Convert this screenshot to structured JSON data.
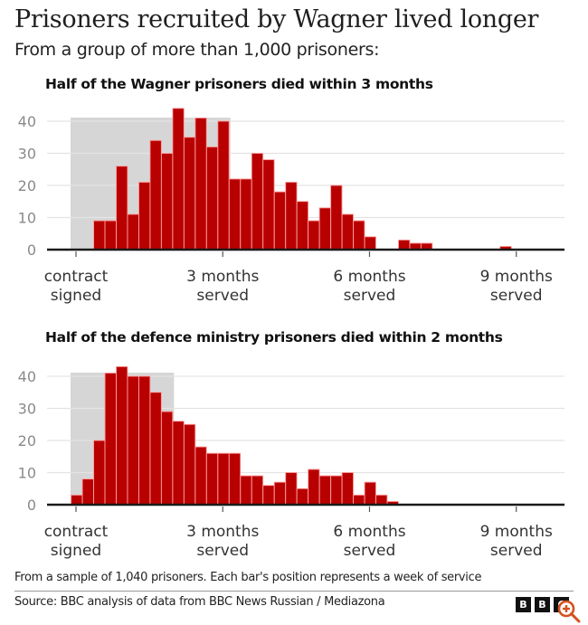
{
  "header": {
    "title": "Prisoners recruited by Wagner lived longer",
    "subtitle": "From a group of more than 1,000 prisoners:"
  },
  "footer": {
    "note": "From a sample of 1,040 prisoners. Each bar's position represents a week of service",
    "source": "Source: BBC analysis of data from BBC News Russian / Mediazona",
    "logo_letters": [
      "B",
      "B",
      "C"
    ],
    "zoom_icon": "zoom-in-icon"
  },
  "colors": {
    "bar": "#b80000",
    "bar_outline": "#ff9a9a",
    "highlight_band": "#d6d6d6",
    "grid": "#e3e3e3",
    "axis": "#1a1a1a",
    "zoom_icon": "#d4511e"
  },
  "chart_data": [
    {
      "type": "bar",
      "title": "Half of the Wagner prisoners died within 3 months",
      "xlabel": "",
      "ylabel": "",
      "ylim": [
        0,
        45
      ],
      "yticks": [
        0,
        10,
        20,
        30,
        40
      ],
      "grid": true,
      "x_unit": "week of service",
      "xticks": [
        {
          "week": 0,
          "label": [
            "contract",
            "signed"
          ]
        },
        {
          "week": 13,
          "label": [
            "3 months",
            "served"
          ]
        },
        {
          "week": 26,
          "label": [
            "6 months",
            "served"
          ]
        },
        {
          "week": 39,
          "label": [
            "9 months",
            "served"
          ]
        }
      ],
      "highlight_weeks": [
        0,
        14
      ],
      "highlight_note": "median: half died within 3 months",
      "x": [
        2,
        3,
        4,
        5,
        6,
        7,
        8,
        9,
        10,
        11,
        12,
        13,
        14,
        15,
        16,
        17,
        18,
        19,
        20,
        21,
        22,
        23,
        24,
        25,
        26,
        29,
        30,
        31,
        38
      ],
      "values": [
        9,
        9,
        26,
        11,
        21,
        34,
        30,
        44,
        35,
        41,
        32,
        40,
        22,
        22,
        30,
        28,
        18,
        21,
        15,
        9,
        13,
        20,
        11,
        9,
        4,
        3,
        2,
        2,
        1
      ]
    },
    {
      "type": "bar",
      "title": "Half of the defence ministry prisoners died within 2 months",
      "xlabel": "",
      "ylabel": "",
      "ylim": [
        0,
        45
      ],
      "yticks": [
        0,
        10,
        20,
        30,
        40
      ],
      "grid": true,
      "x_unit": "week of service",
      "xticks": [
        {
          "week": 0,
          "label": [
            "contract",
            "signed"
          ]
        },
        {
          "week": 13,
          "label": [
            "3 months",
            "served"
          ]
        },
        {
          "week": 26,
          "label": [
            "6 months",
            "served"
          ]
        },
        {
          "week": 39,
          "label": [
            "9 months",
            "served"
          ]
        }
      ],
      "highlight_weeks": [
        0,
        9
      ],
      "highlight_note": "median: half died within 2 months",
      "x": [
        0,
        1,
        2,
        3,
        4,
        5,
        6,
        7,
        8,
        9,
        10,
        11,
        12,
        13,
        14,
        15,
        16,
        17,
        18,
        19,
        20,
        21,
        22,
        23,
        24,
        25,
        26,
        27,
        28
      ],
      "values": [
        3,
        8,
        20,
        41,
        43,
        40,
        40,
        35,
        29,
        26,
        25,
        18,
        16,
        16,
        16,
        9,
        9,
        6,
        7,
        10,
        5,
        11,
        9,
        9,
        10,
        3,
        7,
        3,
        1
      ]
    }
  ]
}
